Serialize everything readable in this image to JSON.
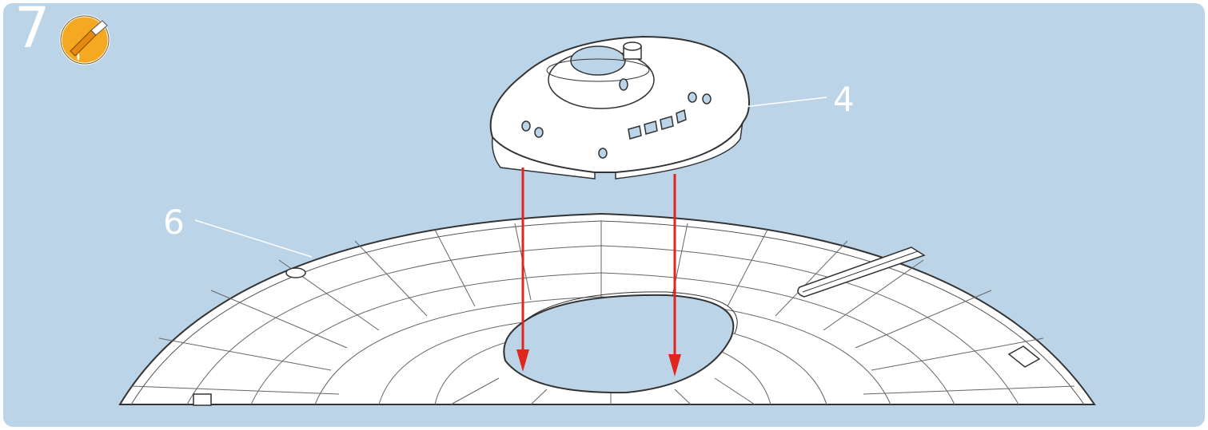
{
  "step": {
    "number": "7"
  },
  "icons": {
    "glue": "glue-bottle-icon"
  },
  "callouts": [
    {
      "label": "4",
      "part": "saucer-top"
    },
    {
      "label": "6",
      "part": "base-plate"
    }
  ],
  "colors": {
    "background": "#bcd4e8",
    "arrow": "#e0271f",
    "icon_circle": "#f5a821",
    "outline": "#333333"
  }
}
